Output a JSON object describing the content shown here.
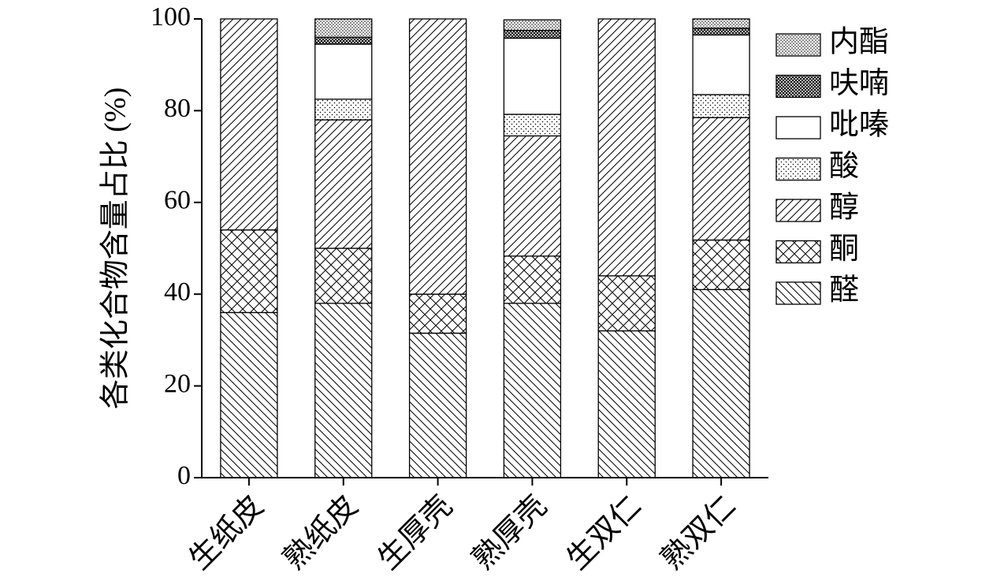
{
  "chart_data": {
    "type": "stacked-bar",
    "y_label": "各类化合物含量占比 (%)",
    "categories": [
      "生纸皮",
      "熟纸皮",
      "生厚壳",
      "熟厚壳",
      "生双仁",
      "熟双仁"
    ],
    "ylim": [
      0,
      100
    ],
    "yticks": [
      0,
      20,
      40,
      60,
      80,
      100
    ],
    "series": [
      {
        "name": "醛",
        "color": "#000000",
        "pattern": "back-hatch",
        "values": [
          36,
          38,
          31.5,
          38,
          32,
          41
        ]
      },
      {
        "name": "酮",
        "color": "#000000",
        "pattern": "cross-hatch",
        "values": [
          18,
          12,
          8.5,
          10.3,
          12,
          10.8
        ]
      },
      {
        "name": "醇",
        "color": "#000000",
        "pattern": "forward-hatch",
        "values": [
          46,
          28,
          60,
          26.2,
          56,
          26.7
        ]
      },
      {
        "name": "酸",
        "color": "#000000",
        "pattern": "sparse-dots",
        "values": [
          0,
          4.5,
          0,
          4.7,
          0,
          5
        ]
      },
      {
        "name": "吡嗪",
        "color": "#000000",
        "pattern": "none",
        "values": [
          0,
          12,
          0,
          16.6,
          0,
          13
        ]
      },
      {
        "name": "呋喃",
        "color": "#000000",
        "pattern": "dense-cross",
        "values": [
          0,
          1.5,
          0,
          1.7,
          0,
          1.5
        ]
      },
      {
        "name": "内酯",
        "color": "#000000",
        "pattern": "dense-dots",
        "values": [
          0,
          4,
          0,
          2.3,
          0,
          2
        ]
      }
    ]
  }
}
